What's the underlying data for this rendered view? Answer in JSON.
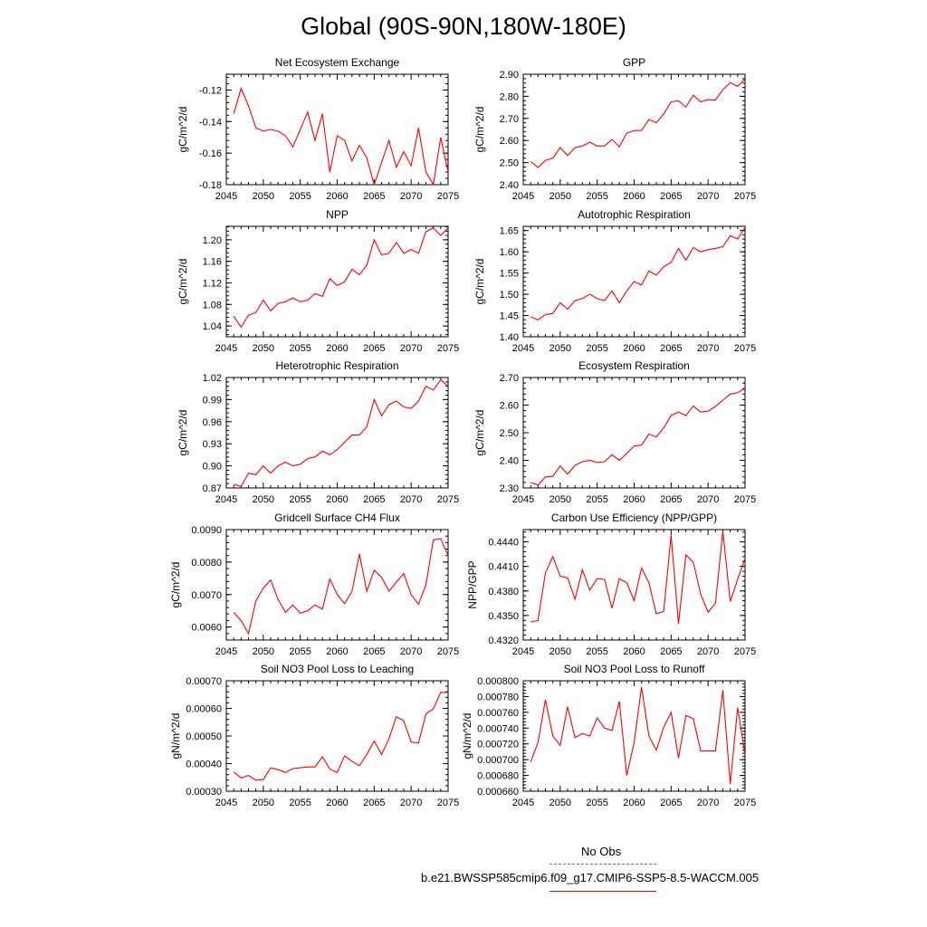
{
  "title": "Global (90S-90N,180W-180E)",
  "colors": {
    "series": "#ff0000",
    "obs": "#6666cc",
    "axis": "#000000"
  },
  "legend": {
    "obs_label": "No Obs",
    "model_label": "b.e21.BWSSP585cmip6.f09_g17.CMIP6-SSP5-8.5-WACCM.005"
  },
  "chart_data": [
    {
      "type": "line",
      "title": "Net Ecosystem Exchange",
      "ylabel": "gC/m^2/d",
      "xlim": [
        2045,
        2075
      ],
      "ylim": [
        -0.18,
        -0.11
      ],
      "yticks": [
        -0.18,
        -0.16,
        -0.14,
        -0.12
      ],
      "ytick_labels": [
        "-0.18",
        "-0.16",
        "-0.14",
        "-0.12"
      ],
      "xticks": [
        2045,
        2050,
        2055,
        2060,
        2065,
        2070,
        2075
      ],
      "xtick_labels": [
        "2045",
        "2050",
        "2055",
        "2060",
        "2065",
        "2070",
        "2075"
      ],
      "x": [
        2046,
        2047,
        2048,
        2049,
        2050,
        2051,
        2052,
        2053,
        2054,
        2055,
        2056,
        2057,
        2058,
        2059,
        2060,
        2061,
        2062,
        2063,
        2064,
        2065,
        2066,
        2067,
        2068,
        2069,
        2070,
        2071,
        2072,
        2073,
        2074,
        2075
      ],
      "values": [
        -0.135,
        -0.119,
        -0.13,
        -0.144,
        -0.146,
        -0.145,
        -0.146,
        -0.149,
        -0.156,
        -0.145,
        -0.134,
        -0.152,
        -0.135,
        -0.172,
        -0.149,
        -0.152,
        -0.165,
        -0.155,
        -0.163,
        -0.18,
        -0.166,
        -0.152,
        -0.169,
        -0.159,
        -0.168,
        -0.144,
        -0.172,
        -0.18,
        -0.15,
        -0.172
      ]
    },
    {
      "type": "line",
      "title": "GPP",
      "ylabel": "gC/m^2/d",
      "xlim": [
        2045,
        2075
      ],
      "ylim": [
        2.4,
        2.9
      ],
      "yticks": [
        2.4,
        2.5,
        2.6,
        2.7,
        2.8,
        2.9
      ],
      "ytick_labels": [
        "2.40",
        "2.50",
        "2.60",
        "2.70",
        "2.80",
        "2.90"
      ],
      "xticks": [
        2045,
        2050,
        2055,
        2060,
        2065,
        2070,
        2075
      ],
      "xtick_labels": [
        "2045",
        "2050",
        "2055",
        "2060",
        "2065",
        "2070",
        "2075"
      ],
      "x": [
        2046,
        2047,
        2048,
        2049,
        2050,
        2051,
        2052,
        2053,
        2054,
        2055,
        2056,
        2057,
        2058,
        2059,
        2060,
        2061,
        2062,
        2063,
        2064,
        2065,
        2066,
        2067,
        2068,
        2069,
        2070,
        2071,
        2072,
        2073,
        2074,
        2075
      ],
      "values": [
        2.505,
        2.478,
        2.51,
        2.52,
        2.568,
        2.532,
        2.568,
        2.575,
        2.592,
        2.575,
        2.575,
        2.605,
        2.572,
        2.633,
        2.645,
        2.645,
        2.695,
        2.68,
        2.72,
        2.775,
        2.78,
        2.752,
        2.805,
        2.775,
        2.785,
        2.783,
        2.83,
        2.862,
        2.845,
        2.88
      ]
    },
    {
      "type": "line",
      "title": "NPP",
      "ylabel": "gC/m^2/d",
      "xlim": [
        2045,
        2075
      ],
      "ylim": [
        1.02,
        1.225
      ],
      "yticks": [
        1.04,
        1.08,
        1.12,
        1.16,
        1.2
      ],
      "ytick_labels": [
        "1.04",
        "1.08",
        "1.12",
        "1.16",
        "1.20"
      ],
      "xticks": [
        2045,
        2050,
        2055,
        2060,
        2065,
        2070,
        2075
      ],
      "xtick_labels": [
        "2045",
        "2050",
        "2055",
        "2060",
        "2065",
        "2070",
        "2075"
      ],
      "x": [
        2046,
        2047,
        2048,
        2049,
        2050,
        2051,
        2052,
        2053,
        2054,
        2055,
        2056,
        2057,
        2058,
        2059,
        2060,
        2061,
        2062,
        2063,
        2064,
        2065,
        2066,
        2067,
        2068,
        2069,
        2070,
        2071,
        2072,
        2073,
        2074,
        2075
      ],
      "values": [
        1.058,
        1.038,
        1.06,
        1.065,
        1.088,
        1.068,
        1.082,
        1.085,
        1.092,
        1.085,
        1.088,
        1.1,
        1.095,
        1.128,
        1.115,
        1.122,
        1.145,
        1.135,
        1.153,
        1.2,
        1.172,
        1.175,
        1.195,
        1.175,
        1.182,
        1.175,
        1.215,
        1.222,
        1.208,
        1.222
      ]
    },
    {
      "type": "line",
      "title": "Autotrophic Respiration",
      "ylabel": "gC/m^2/d",
      "xlim": [
        2045,
        2075
      ],
      "ylim": [
        1.4,
        1.66
      ],
      "yticks": [
        1.4,
        1.45,
        1.5,
        1.55,
        1.6,
        1.65
      ],
      "ytick_labels": [
        "1.40",
        "1.45",
        "1.50",
        "1.55",
        "1.60",
        "1.65"
      ],
      "xticks": [
        2045,
        2050,
        2055,
        2060,
        2065,
        2070,
        2075
      ],
      "xtick_labels": [
        "2045",
        "2050",
        "2055",
        "2060",
        "2065",
        "2070",
        "2075"
      ],
      "x": [
        2046,
        2047,
        2048,
        2049,
        2050,
        2051,
        2052,
        2053,
        2054,
        2055,
        2056,
        2057,
        2058,
        2059,
        2060,
        2061,
        2062,
        2063,
        2064,
        2065,
        2066,
        2067,
        2068,
        2069,
        2070,
        2071,
        2072,
        2073,
        2074,
        2075
      ],
      "values": [
        1.447,
        1.44,
        1.452,
        1.455,
        1.48,
        1.465,
        1.485,
        1.49,
        1.5,
        1.49,
        1.485,
        1.508,
        1.48,
        1.508,
        1.53,
        1.522,
        1.555,
        1.545,
        1.565,
        1.575,
        1.608,
        1.58,
        1.61,
        1.6,
        1.605,
        1.608,
        1.612,
        1.638,
        1.63,
        1.657
      ]
    },
    {
      "type": "line",
      "title": "Heterotrophic Respiration",
      "ylabel": "gC/m^2/d",
      "xlim": [
        2045,
        2075
      ],
      "ylim": [
        0.87,
        1.02
      ],
      "yticks": [
        0.87,
        0.9,
        0.93,
        0.96,
        0.99,
        1.02
      ],
      "ytick_labels": [
        "0.87",
        "0.90",
        "0.93",
        "0.96",
        "0.99",
        "1.02"
      ],
      "xticks": [
        2045,
        2050,
        2055,
        2060,
        2065,
        2070,
        2075
      ],
      "xtick_labels": [
        "2045",
        "2050",
        "2055",
        "2060",
        "2065",
        "2070",
        "2075"
      ],
      "x": [
        2046,
        2047,
        2048,
        2049,
        2050,
        2051,
        2052,
        2053,
        2054,
        2055,
        2056,
        2057,
        2058,
        2059,
        2060,
        2061,
        2062,
        2063,
        2064,
        2065,
        2066,
        2067,
        2068,
        2069,
        2070,
        2071,
        2072,
        2073,
        2074,
        2075
      ],
      "values": [
        0.875,
        0.872,
        0.89,
        0.888,
        0.9,
        0.89,
        0.9,
        0.905,
        0.9,
        0.902,
        0.91,
        0.912,
        0.92,
        0.915,
        0.922,
        0.932,
        0.942,
        0.942,
        0.953,
        0.99,
        0.968,
        0.983,
        0.988,
        0.98,
        0.978,
        0.988,
        1.008,
        1.003,
        1.017,
        1.008
      ]
    },
    {
      "type": "line",
      "title": "Ecosystem Respiration",
      "ylabel": "gC/m^2/d",
      "xlim": [
        2045,
        2075
      ],
      "ylim": [
        2.3,
        2.7
      ],
      "yticks": [
        2.3,
        2.4,
        2.5,
        2.6,
        2.7
      ],
      "ytick_labels": [
        "2.30",
        "2.40",
        "2.50",
        "2.60",
        "2.70"
      ],
      "xticks": [
        2045,
        2050,
        2055,
        2060,
        2065,
        2070,
        2075
      ],
      "xtick_labels": [
        "2045",
        "2050",
        "2055",
        "2060",
        "2065",
        "2070",
        "2075"
      ],
      "x": [
        2046,
        2047,
        2048,
        2049,
        2050,
        2051,
        2052,
        2053,
        2054,
        2055,
        2056,
        2057,
        2058,
        2059,
        2060,
        2061,
        2062,
        2063,
        2064,
        2065,
        2066,
        2067,
        2068,
        2069,
        2070,
        2071,
        2072,
        2073,
        2074,
        2075
      ],
      "values": [
        2.32,
        2.31,
        2.34,
        2.342,
        2.38,
        2.35,
        2.382,
        2.395,
        2.4,
        2.392,
        2.395,
        2.42,
        2.4,
        2.425,
        2.452,
        2.455,
        2.495,
        2.485,
        2.518,
        2.562,
        2.575,
        2.562,
        2.597,
        2.575,
        2.578,
        2.595,
        2.618,
        2.64,
        2.645,
        2.66
      ]
    },
    {
      "type": "line",
      "title": "Gridcell Surface CH4 Flux",
      "ylabel": "gC/m^2/d",
      "xlim": [
        2045,
        2075
      ],
      "ylim": [
        0.0056,
        0.009
      ],
      "yticks": [
        0.006,
        0.007,
        0.008,
        0.009
      ],
      "ytick_labels": [
        "0.0060",
        "0.0070",
        "0.0080",
        "0.0090"
      ],
      "xticks": [
        2045,
        2050,
        2055,
        2060,
        2065,
        2070,
        2075
      ],
      "xtick_labels": [
        "2045",
        "2050",
        "2055",
        "2060",
        "2065",
        "2070",
        "2075"
      ],
      "x": [
        2046,
        2047,
        2048,
        2049,
        2050,
        2051,
        2052,
        2053,
        2054,
        2055,
        2056,
        2057,
        2058,
        2059,
        2060,
        2061,
        2062,
        2063,
        2064,
        2065,
        2066,
        2067,
        2068,
        2069,
        2070,
        2071,
        2072,
        2073,
        2074,
        2075
      ],
      "values": [
        0.00645,
        0.0062,
        0.0058,
        0.0068,
        0.0072,
        0.00745,
        0.00685,
        0.00645,
        0.00668,
        0.00643,
        0.0065,
        0.00668,
        0.00655,
        0.00748,
        0.007,
        0.00672,
        0.0071,
        0.00825,
        0.0071,
        0.00775,
        0.00753,
        0.0071,
        0.00738,
        0.00765,
        0.007,
        0.0067,
        0.0073,
        0.00868,
        0.00872,
        0.0082
      ]
    },
    {
      "type": "line",
      "title": "Carbon Use Efficiency (NPP/GPP)",
      "ylabel": "NPP/GPP",
      "xlim": [
        2045,
        2075
      ],
      "ylim": [
        0.432,
        0.4455
      ],
      "yticks": [
        0.432,
        0.435,
        0.438,
        0.441,
        0.444
      ],
      "ytick_labels": [
        "0.4320",
        "0.4350",
        "0.4380",
        "0.4410",
        "0.4440"
      ],
      "xticks": [
        2045,
        2050,
        2055,
        2060,
        2065,
        2070,
        2075
      ],
      "xtick_labels": [
        "2045",
        "2050",
        "2055",
        "2060",
        "2065",
        "2070",
        "2075"
      ],
      "x": [
        2046,
        2047,
        2048,
        2049,
        2050,
        2051,
        2052,
        2053,
        2054,
        2055,
        2056,
        2057,
        2058,
        2059,
        2060,
        2061,
        2062,
        2063,
        2064,
        2065,
        2066,
        2067,
        2068,
        2069,
        2070,
        2071,
        2072,
        2073,
        2074,
        2075
      ],
      "values": [
        0.4342,
        0.4344,
        0.4402,
        0.4422,
        0.4398,
        0.4396,
        0.437,
        0.4406,
        0.4381,
        0.4395,
        0.4394,
        0.4359,
        0.4395,
        0.439,
        0.4368,
        0.4408,
        0.439,
        0.4352,
        0.4355,
        0.4448,
        0.434,
        0.4424,
        0.4415,
        0.4376,
        0.4354,
        0.4365,
        0.4453,
        0.4367,
        0.4394,
        0.442
      ]
    },
    {
      "type": "line",
      "title": "Soil NO3 Pool Loss to Leaching",
      "ylabel": "gN/m^2/d",
      "xlim": [
        2045,
        2075
      ],
      "ylim": [
        0.0003,
        0.0007
      ],
      "yticks": [
        0.0003,
        0.0004,
        0.0005,
        0.0006,
        0.0007
      ],
      "ytick_labels": [
        "0.00030",
        "0.00040",
        "0.00050",
        "0.00060",
        "0.00070"
      ],
      "xticks": [
        2045,
        2050,
        2055,
        2060,
        2065,
        2070,
        2075
      ],
      "xtick_labels": [
        "2045",
        "2050",
        "2055",
        "2060",
        "2065",
        "2070",
        "2075"
      ],
      "x": [
        2046,
        2047,
        2048,
        2049,
        2050,
        2051,
        2052,
        2053,
        2054,
        2055,
        2056,
        2057,
        2058,
        2059,
        2060,
        2061,
        2062,
        2063,
        2064,
        2065,
        2066,
        2067,
        2068,
        2069,
        2070,
        2071,
        2072,
        2073,
        2074,
        2075
      ],
      "values": [
        0.00037,
        0.000348,
        0.000357,
        0.00034,
        0.000342,
        0.000385,
        0.000378,
        0.000368,
        0.000382,
        0.000385,
        0.000388,
        0.000388,
        0.000425,
        0.00038,
        0.000368,
        0.000428,
        0.000408,
        0.000392,
        0.000433,
        0.000482,
        0.000433,
        0.00049,
        0.00057,
        0.000555,
        0.000478,
        0.000475,
        0.00058,
        0.000598,
        0.000658,
        0.000658
      ]
    },
    {
      "type": "line",
      "title": "Soil NO3 Pool Loss to Runoff",
      "ylabel": "gN/m^2/d",
      "xlim": [
        2045,
        2075
      ],
      "ylim": [
        0.00066,
        0.0008
      ],
      "yticks": [
        0.00066,
        0.00068,
        0.0007,
        0.00072,
        0.00074,
        0.00076,
        0.00078,
        0.0008
      ],
      "ytick_labels": [
        "0.000660",
        "0.000680",
        "0.000700",
        "0.000720",
        "0.000740",
        "0.000760",
        "0.000780",
        "0.000800"
      ],
      "xticks": [
        2045,
        2050,
        2055,
        2060,
        2065,
        2070,
        2075
      ],
      "xtick_labels": [
        "2045",
        "2050",
        "2055",
        "2060",
        "2065",
        "2070",
        "2075"
      ],
      "x": [
        2046,
        2047,
        2048,
        2049,
        2050,
        2051,
        2052,
        2053,
        2054,
        2055,
        2056,
        2057,
        2058,
        2059,
        2060,
        2061,
        2062,
        2063,
        2064,
        2065,
        2066,
        2067,
        2068,
        2069,
        2070,
        2071,
        2072,
        2073,
        2074,
        2075
      ],
      "values": [
        0.000697,
        0.000722,
        0.000776,
        0.00073,
        0.000718,
        0.000767,
        0.000728,
        0.000733,
        0.00073,
        0.000753,
        0.00074,
        0.000737,
        0.000774,
        0.00068,
        0.000722,
        0.000792,
        0.00073,
        0.000712,
        0.000741,
        0.00076,
        0.000702,
        0.000756,
        0.000752,
        0.000711,
        0.000711,
        0.000711,
        0.000788,
        0.000669,
        0.000766,
        0.000706
      ]
    }
  ]
}
